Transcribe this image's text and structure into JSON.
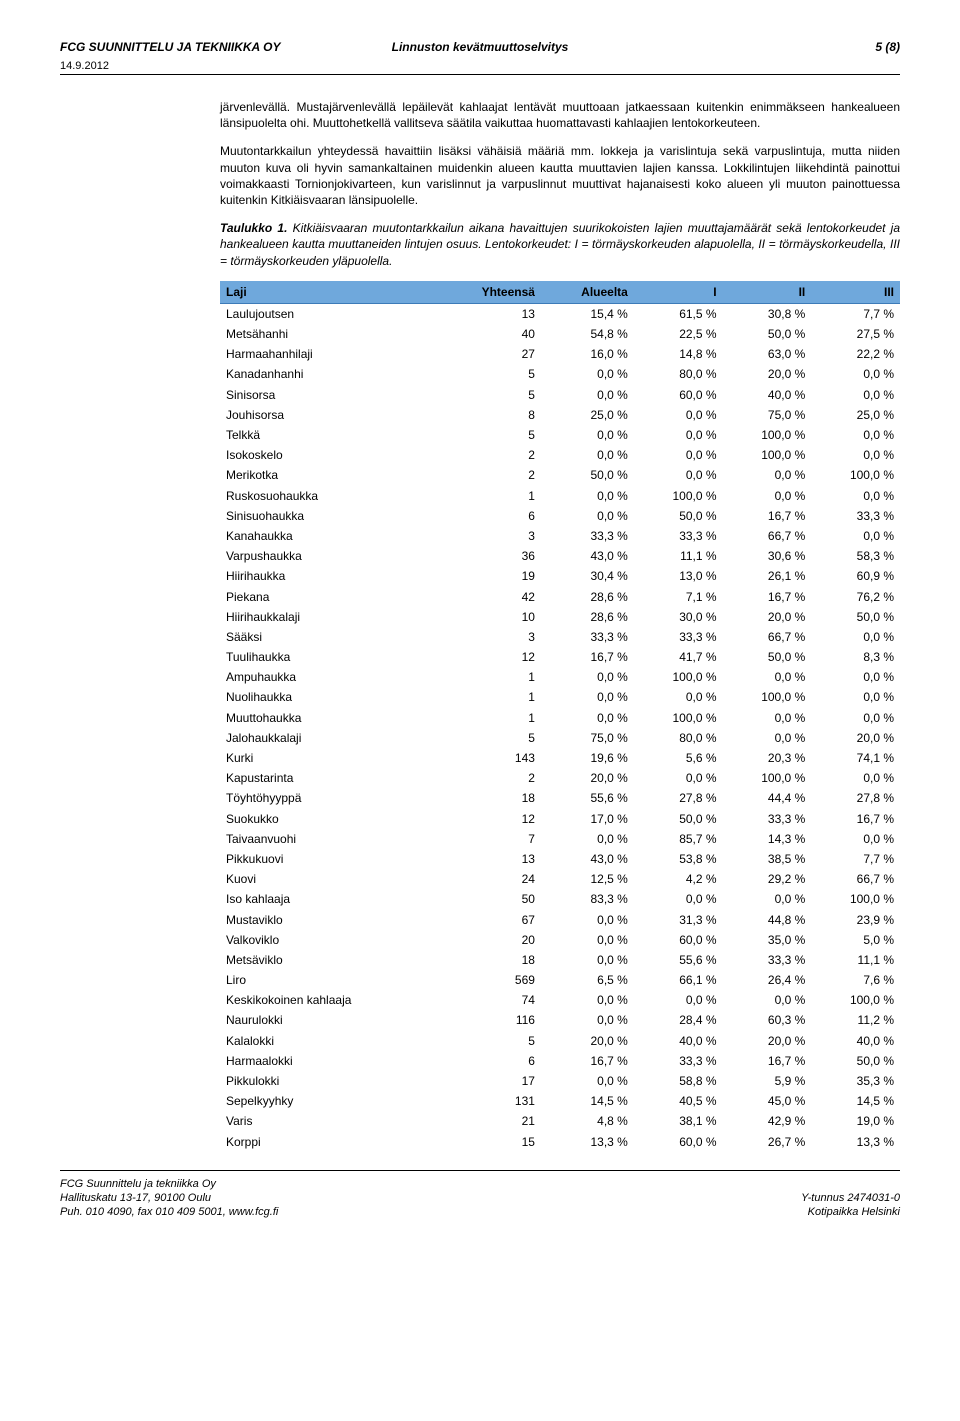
{
  "header": {
    "company": "FCG SUUNNITTELU JA TEKNIIKKA OY",
    "title": "Linnuston kevätmuuttoselvitys",
    "page": "5 (8)",
    "date": "14.9.2012"
  },
  "body": {
    "p1": "järvenlevällä. Mustajärvenlevällä lepäilevät kahlaajat lentävät muuttoaan jatkaessaan kuitenkin enimmäkseen hankealueen länsipuolelta ohi. Muuttohetkellä vallitseva säätila vaikuttaa huomattavasti kahlaajien lentokorkeuteen.",
    "p2": "Muutontarkkailun yhteydessä havaittiin lisäksi vähäisiä määriä mm. lokkeja ja varislintuja sekä varpuslintuja, mutta niiden muuton kuva oli hyvin samankaltainen muidenkin alueen kautta muuttavien lajien kanssa. Lokkilintujen liikehdintä painottui voimakkaasti Tornionjokivarteen, kun varislinnut ja varpuslinnut muuttivat hajanaisesti koko alueen yli muuton painottuessa kuitenkin Kitkiäisvaaran länsipuolelle.",
    "table_title": "Taulukko 1.",
    "caption": "Kitkiäisvaaran muutontarkkailun aikana havaittujen suurikokoisten lajien muuttajamäärät sekä lentokorkeudet ja hankealueen kautta muuttaneiden lintujen osuus. Lentokorkeudet: I = törmäyskorkeuden alapuolella, II = törmäyskorkeudella, III = törmäyskorkeuden yläpuolella."
  },
  "table": {
    "columns": [
      "Laji",
      "Yhteensä",
      "Alueelta",
      "I",
      "II",
      "III"
    ],
    "header_bg": "#6fa8dc",
    "rows": [
      [
        "Laulujoutsen",
        "13",
        "15,4 %",
        "61,5 %",
        "30,8 %",
        "7,7 %"
      ],
      [
        "Metsähanhi",
        "40",
        "54,8 %",
        "22,5 %",
        "50,0 %",
        "27,5 %"
      ],
      [
        "Harmaahanhilaji",
        "27",
        "16,0 %",
        "14,8 %",
        "63,0 %",
        "22,2 %"
      ],
      [
        "Kanadanhanhi",
        "5",
        "0,0 %",
        "80,0 %",
        "20,0 %",
        "0,0 %"
      ],
      [
        "Sinisorsa",
        "5",
        "0,0 %",
        "60,0 %",
        "40,0 %",
        "0,0 %"
      ],
      [
        "Jouhisorsa",
        "8",
        "25,0 %",
        "0,0 %",
        "75,0 %",
        "25,0 %"
      ],
      [
        "Telkkä",
        "5",
        "0,0 %",
        "0,0 %",
        "100,0 %",
        "0,0 %"
      ],
      [
        "Isokoskelo",
        "2",
        "0,0 %",
        "0,0 %",
        "100,0 %",
        "0,0 %"
      ],
      [
        "Merikotka",
        "2",
        "50,0 %",
        "0,0 %",
        "0,0 %",
        "100,0 %"
      ],
      [
        "Ruskosuohaukka",
        "1",
        "0,0 %",
        "100,0 %",
        "0,0 %",
        "0,0 %"
      ],
      [
        "Sinisuohaukka",
        "6",
        "0,0 %",
        "50,0 %",
        "16,7 %",
        "33,3 %"
      ],
      [
        "Kanahaukka",
        "3",
        "33,3 %",
        "33,3 %",
        "66,7 %",
        "0,0 %"
      ],
      [
        "Varpushaukka",
        "36",
        "43,0 %",
        "11,1 %",
        "30,6 %",
        "58,3 %"
      ],
      [
        "Hiirihaukka",
        "19",
        "30,4 %",
        "13,0 %",
        "26,1 %",
        "60,9 %"
      ],
      [
        "Piekana",
        "42",
        "28,6 %",
        "7,1 %",
        "16,7 %",
        "76,2 %"
      ],
      [
        "Hiirihaukkalaji",
        "10",
        "28,6 %",
        "30,0 %",
        "20,0 %",
        "50,0 %"
      ],
      [
        "Sääksi",
        "3",
        "33,3 %",
        "33,3 %",
        "66,7 %",
        "0,0 %"
      ],
      [
        "Tuulihaukka",
        "12",
        "16,7 %",
        "41,7 %",
        "50,0 %",
        "8,3 %"
      ],
      [
        "Ampuhaukka",
        "1",
        "0,0 %",
        "100,0 %",
        "0,0 %",
        "0,0 %"
      ],
      [
        "Nuolihaukka",
        "1",
        "0,0 %",
        "0,0 %",
        "100,0 %",
        "0,0 %"
      ],
      [
        "Muuttohaukka",
        "1",
        "0,0 %",
        "100,0 %",
        "0,0 %",
        "0,0 %"
      ],
      [
        "Jalohaukkalaji",
        "5",
        "75,0 %",
        "80,0 %",
        "0,0 %",
        "20,0 %"
      ],
      [
        "Kurki",
        "143",
        "19,6 %",
        "5,6 %",
        "20,3 %",
        "74,1 %"
      ],
      [
        "Kapustarinta",
        "2",
        "20,0 %",
        "0,0 %",
        "100,0 %",
        "0,0 %"
      ],
      [
        "Töyhtöhyyppä",
        "18",
        "55,6 %",
        "27,8 %",
        "44,4 %",
        "27,8 %"
      ],
      [
        "Suokukko",
        "12",
        "17,0 %",
        "50,0 %",
        "33,3 %",
        "16,7 %"
      ],
      [
        "Taivaanvuohi",
        "7",
        "0,0 %",
        "85,7 %",
        "14,3 %",
        "0,0 %"
      ],
      [
        "Pikkukuovi",
        "13",
        "43,0 %",
        "53,8 %",
        "38,5 %",
        "7,7 %"
      ],
      [
        "Kuovi",
        "24",
        "12,5 %",
        "4,2 %",
        "29,2 %",
        "66,7 %"
      ],
      [
        "Iso kahlaaja",
        "50",
        "83,3 %",
        "0,0 %",
        "0,0 %",
        "100,0 %"
      ],
      [
        "Mustaviklo",
        "67",
        "0,0 %",
        "31,3 %",
        "44,8 %",
        "23,9 %"
      ],
      [
        "Valkoviklo",
        "20",
        "0,0 %",
        "60,0 %",
        "35,0 %",
        "5,0 %"
      ],
      [
        "Metsäviklo",
        "18",
        "0,0 %",
        "55,6 %",
        "33,3 %",
        "11,1 %"
      ],
      [
        "Liro",
        "569",
        "6,5 %",
        "66,1 %",
        "26,4 %",
        "7,6 %"
      ],
      [
        "Keskikokoinen kahlaaja",
        "74",
        "0,0 %",
        "0,0 %",
        "0,0 %",
        "100,0 %"
      ],
      [
        "Naurulokki",
        "116",
        "0,0 %",
        "28,4 %",
        "60,3 %",
        "11,2 %"
      ],
      [
        "Kalalokki",
        "5",
        "20,0 %",
        "40,0 %",
        "20,0 %",
        "40,0 %"
      ],
      [
        "Harmaalokki",
        "6",
        "16,7 %",
        "33,3 %",
        "16,7 %",
        "50,0 %"
      ],
      [
        "Pikkulokki",
        "17",
        "0,0 %",
        "58,8 %",
        "5,9 %",
        "35,3 %"
      ],
      [
        "Sepelkyyhky",
        "131",
        "14,5 %",
        "40,5 %",
        "45,0 %",
        "14,5 %"
      ],
      [
        "Varis",
        "21",
        "4,8 %",
        "38,1 %",
        "42,9 %",
        "19,0 %"
      ],
      [
        "Korppi",
        "15",
        "13,3 %",
        "60,0 %",
        "26,7 %",
        "13,3 %"
      ]
    ]
  },
  "footer": {
    "left_name": "FCG Suunnittelu ja tekniikka Oy",
    "left_addr": "Hallituskatu 13-17, 90100 Oulu",
    "left_phone": "Puh. 010 4090, fax 010 409 5001, www.fcg.fi",
    "right_id": "Y-tunnus 2474031-0",
    "right_city": "Kotipaikka Helsinki"
  }
}
